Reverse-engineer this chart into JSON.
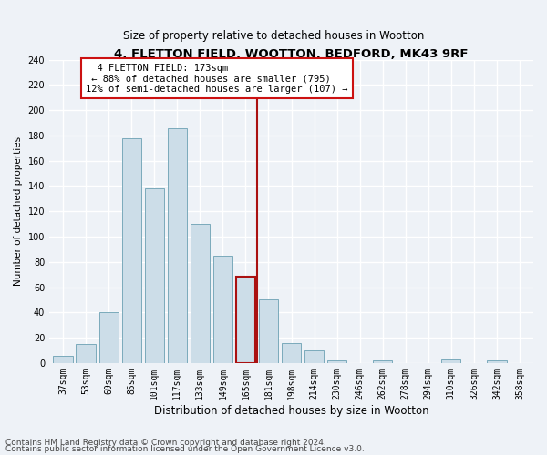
{
  "title": "4, FLETTON FIELD, WOOTTON, BEDFORD, MK43 9RF",
  "subtitle": "Size of property relative to detached houses in Wootton",
  "xlabel": "Distribution of detached houses by size in Wootton",
  "ylabel": "Number of detached properties",
  "bar_labels": [
    "37sqm",
    "53sqm",
    "69sqm",
    "85sqm",
    "101sqm",
    "117sqm",
    "133sqm",
    "149sqm",
    "165sqm",
    "181sqm",
    "198sqm",
    "214sqm",
    "230sqm",
    "246sqm",
    "262sqm",
    "278sqm",
    "294sqm",
    "310sqm",
    "326sqm",
    "342sqm",
    "358sqm"
  ],
  "bar_values": [
    6,
    15,
    40,
    178,
    138,
    186,
    110,
    85,
    68,
    50,
    16,
    10,
    2,
    0,
    2,
    0,
    0,
    3,
    0,
    2,
    0
  ],
  "bar_color": "#ccdde8",
  "bar_edge_color": "#7aaabb",
  "highlight_bar_index": 8,
  "highlight_bar_edge_color": "#aa1111",
  "vline_color": "#aa1111",
  "annotation_text": "  4 FLETTON FIELD: 173sqm  \n ← 88% of detached houses are smaller (795)\n12% of semi-detached houses are larger (107) →",
  "annotation_box_color": "#ffffff",
  "annotation_box_edge_color": "#cc1111",
  "ylim": [
    0,
    240
  ],
  "yticks": [
    0,
    20,
    40,
    60,
    80,
    100,
    120,
    140,
    160,
    180,
    200,
    220,
    240
  ],
  "footnote1": "Contains HM Land Registry data © Crown copyright and database right 2024.",
  "footnote2": "Contains public sector information licensed under the Open Government Licence v3.0.",
  "background_color": "#eef2f7",
  "grid_color": "#ffffff",
  "title_fontsize": 9.5,
  "subtitle_fontsize": 8.5,
  "xlabel_fontsize": 8.5,
  "ylabel_fontsize": 7.5,
  "tick_fontsize": 7,
  "annotation_fontsize": 7.5,
  "footnote_fontsize": 6.5
}
